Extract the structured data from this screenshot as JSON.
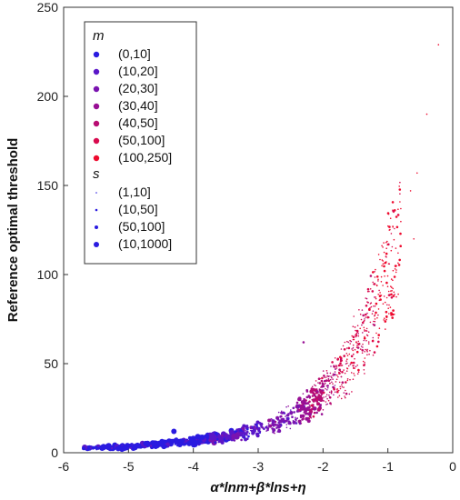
{
  "chart_data": {
    "type": "scatter",
    "xlabel": "α*lnm+β*lns+η",
    "ylabel": "Reference optimal threshold",
    "xlim": [
      -6,
      0
    ],
    "ylim": [
      0,
      250
    ],
    "xticks": [
      "-6",
      "-5",
      "-4",
      "-3",
      "-2",
      "-1",
      "0"
    ],
    "yticks": [
      "0",
      "50",
      "100",
      "150",
      "200",
      "250"
    ],
    "grid": false,
    "legend_position": "top-left",
    "legend": {
      "color_title": "m",
      "color_groups": [
        {
          "label": "(0,10]",
          "color": "#2a1be0"
        },
        {
          "label": "(10,20]",
          "color": "#5a17c8"
        },
        {
          "label": "(20,30]",
          "color": "#7a13b0"
        },
        {
          "label": "(30,40]",
          "color": "#980f94"
        },
        {
          "label": "(40,50]",
          "color": "#b80c72"
        },
        {
          "label": "(50,100]",
          "color": "#d80a4e"
        },
        {
          "label": "(100,250]",
          "color": "#ee0a2e"
        }
      ],
      "size_title": "s",
      "size_groups": [
        {
          "label": "(1,10]",
          "size": 1
        },
        {
          "label": "(10,50]",
          "size": 2
        },
        {
          "label": "(50,100]",
          "size": 3
        },
        {
          "label": "(10,1000]",
          "size": 4
        }
      ]
    },
    "trend_points": [
      {
        "x": -5.6,
        "y": 2.5,
        "group": 0
      },
      {
        "x": -5.0,
        "y": 3.5,
        "group": 0
      },
      {
        "x": -4.5,
        "y": 5,
        "group": 0
      },
      {
        "x": -4.0,
        "y": 6.5,
        "group": 0
      },
      {
        "x": -3.5,
        "y": 9,
        "group": 1
      },
      {
        "x": -3.0,
        "y": 13,
        "group": 1
      },
      {
        "x": -2.8,
        "y": 15,
        "group": 2
      },
      {
        "x": -2.5,
        "y": 20,
        "group": 2
      },
      {
        "x": -2.3,
        "y": 25,
        "group": 3
      },
      {
        "x": -2.1,
        "y": 30,
        "group": 4
      },
      {
        "x": -1.9,
        "y": 38,
        "group": 4
      },
      {
        "x": -1.7,
        "y": 46,
        "group": 5
      },
      {
        "x": -1.5,
        "y": 58,
        "group": 5
      },
      {
        "x": -1.3,
        "y": 72,
        "group": 5
      },
      {
        "x": -1.1,
        "y": 90,
        "group": 6
      },
      {
        "x": -0.9,
        "y": 110,
        "group": 6
      },
      {
        "x": -0.7,
        "y": 135,
        "group": 6
      },
      {
        "x": -0.5,
        "y": 160,
        "group": 6
      }
    ],
    "notable_points": [
      {
        "x": -0.22,
        "y": 229,
        "group": 6,
        "size": 1
      },
      {
        "x": -0.4,
        "y": 190,
        "group": 6,
        "size": 1
      },
      {
        "x": -0.55,
        "y": 157,
        "group": 6,
        "size": 1
      },
      {
        "x": -0.65,
        "y": 147,
        "group": 6,
        "size": 1
      },
      {
        "x": -0.8,
        "y": 137,
        "group": 6,
        "size": 1
      },
      {
        "x": -0.6,
        "y": 120,
        "group": 6,
        "size": 1
      },
      {
        "x": -1.05,
        "y": 102,
        "group": 6,
        "size": 2
      },
      {
        "x": -2.3,
        "y": 62,
        "group": 3,
        "size": 2
      },
      {
        "x": -4.3,
        "y": 12,
        "group": 0,
        "size": 4
      },
      {
        "x": -5.4,
        "y": 3,
        "group": 0,
        "size": 4
      },
      {
        "x": -5.1,
        "y": 2,
        "group": 0,
        "size": 4
      }
    ]
  }
}
